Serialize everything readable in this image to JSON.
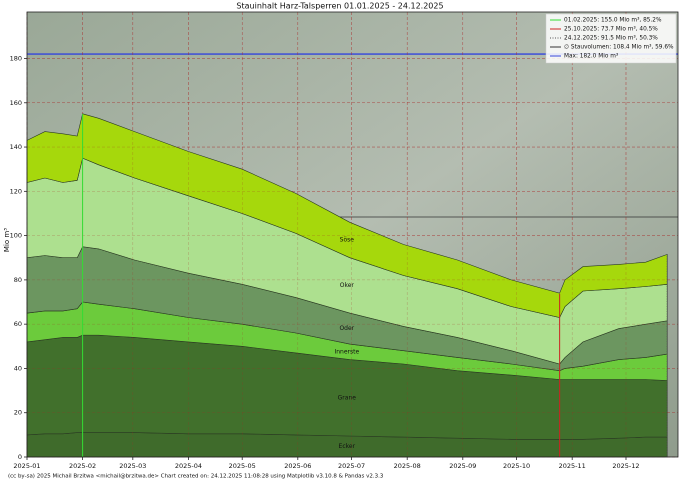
{
  "chart_data": {
    "type": "area",
    "stacked": true,
    "title": "Stauinhalt Harz-Talsperren 01.01.2025 - 24.12.2025",
    "ylabel": "Mio m³",
    "x": [
      0,
      10,
      20,
      28,
      31,
      40,
      60,
      90,
      120,
      150,
      180,
      210,
      240,
      270,
      297,
      300,
      310,
      330,
      345,
      357
    ],
    "xlim": [
      0,
      363
    ],
    "xticks": [
      {
        "value": 0,
        "label": "2025-01"
      },
      {
        "value": 31,
        "label": "2025-02"
      },
      {
        "value": 59,
        "label": "2025-03"
      },
      {
        "value": 90,
        "label": "2025-04"
      },
      {
        "value": 120,
        "label": "2025-05"
      },
      {
        "value": 151,
        "label": "2025-06"
      },
      {
        "value": 181,
        "label": "2025-07"
      },
      {
        "value": 212,
        "label": "2025-08"
      },
      {
        "value": 243,
        "label": "2025-09"
      },
      {
        "value": 273,
        "label": "2025-10"
      },
      {
        "value": 304,
        "label": "2025-11"
      },
      {
        "value": 334,
        "label": "2025-12"
      }
    ],
    "ylim": [
      0,
      201
    ],
    "yticks": [
      0,
      20,
      40,
      60,
      80,
      100,
      120,
      140,
      160,
      180
    ],
    "grid": true,
    "legend": "upper right",
    "series": [
      {
        "name": "Ecker",
        "color": "#3f6b2b",
        "values": [
          10,
          10.5,
          10.5,
          11,
          11,
          11,
          11,
          10.5,
          10.5,
          10,
          9.5,
          9,
          8.5,
          8,
          8,
          8,
          8,
          8.5,
          9,
          9
        ]
      },
      {
        "name": "Grane",
        "color": "#41702c",
        "values": [
          42,
          42.5,
          43.5,
          43,
          44,
          44,
          43,
          41.5,
          39.5,
          37,
          34.5,
          33,
          30.5,
          29,
          27,
          27,
          27,
          26.5,
          26,
          25.5
        ]
      },
      {
        "name": "Innerste",
        "color": "#6ccb3c",
        "values": [
          13,
          13,
          12,
          13,
          15,
          14,
          13,
          11,
          10,
          9,
          7,
          6,
          6,
          5,
          4,
          5,
          6,
          9,
          10,
          12
        ]
      },
      {
        "name": "Oder",
        "color": "#6c9660",
        "values": [
          25,
          25,
          24,
          23,
          25,
          25,
          22,
          20,
          18,
          16,
          14,
          11,
          9,
          6,
          3,
          5,
          11,
          14,
          15,
          15
        ]
      },
      {
        "name": "Oker",
        "color": "#ade08f",
        "values": [
          34,
          35,
          34,
          35,
          40,
          38,
          37,
          35,
          32,
          29,
          25,
          23,
          22,
          20,
          21,
          23,
          23,
          18,
          17,
          16.5
        ]
      },
      {
        "name": "Söse",
        "color": "#a6d80c",
        "values": [
          19,
          21,
          22,
          20,
          20,
          21,
          21,
          20,
          20,
          18,
          16,
          14,
          13,
          12,
          11,
          12,
          11,
          11,
          11,
          13.5
        ]
      }
    ],
    "markers": [
      {
        "label": "01.02.2025: 155.0 Mio m³, 85.2%",
        "x": 31,
        "y": 155.0,
        "color": "#33dd33",
        "style": "solid"
      },
      {
        "label": "25.10.2025: 73.7 Mio m³, 40.5%",
        "x": 297,
        "y": 73.7,
        "color": "#cc2222",
        "style": "solid"
      },
      {
        "label": "24.12.2025: 91.5 Mio m³, 50.3%",
        "x": 357,
        "y": 91.5,
        "color": "#555555",
        "style": "dotted"
      }
    ],
    "hlines": [
      {
        "label": "∅ Stauvolumen: 108.4 Mio m³, 59.6%",
        "y": 108.4,
        "color": "#333333"
      },
      {
        "label": "Max: 182.0 Mio m³",
        "y": 182.0,
        "color": "#3344dd"
      }
    ],
    "footer": "(cc by-sa) 2025 Michail Brzitwa <michail@brzitwa.de>   Chart created on: 24.12.2025 11:08:28 using Matplotlib v3.10.8 & Pandas v2.3.3"
  }
}
